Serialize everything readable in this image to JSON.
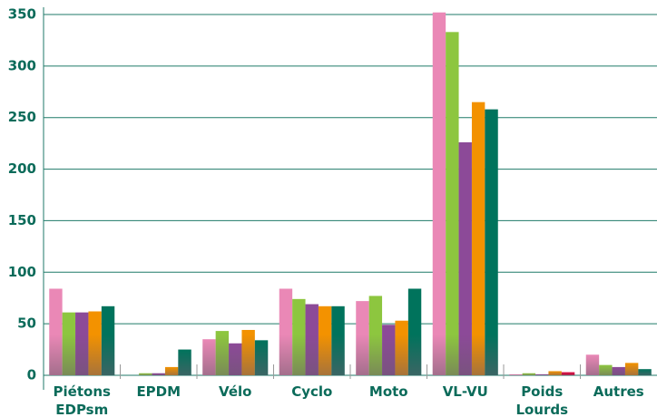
{
  "chart_data": {
    "type": "bar",
    "categories": [
      [
        "Piétons",
        "EDPsm"
      ],
      [
        "EPDM"
      ],
      [
        "Vélo"
      ],
      [
        "Cyclo"
      ],
      [
        "Moto"
      ],
      [
        "VL-VU"
      ],
      [
        "Poids",
        "Lourds"
      ],
      [
        "Autres"
      ]
    ],
    "series": [
      {
        "color": "#ea88b6",
        "values": [
          84,
          0,
          35,
          84,
          72,
          352,
          1,
          20
        ]
      },
      {
        "color": "#8dc63f",
        "values": [
          61,
          2,
          43,
          74,
          77,
          333,
          2,
          10
        ]
      },
      {
        "color": "#8c4a98",
        "values": [
          61,
          2,
          31,
          69,
          49,
          226,
          1,
          8
        ]
      },
      {
        "color": "#f39200",
        "values": [
          62,
          8,
          44,
          67,
          53,
          265,
          4,
          12
        ]
      },
      {
        "color": "#00735c",
        "point_colors": {
          "6": "#e4003a"
        },
        "values": [
          67,
          25,
          34,
          67,
          84,
          258,
          3,
          6
        ]
      }
    ],
    "ylim": [
      0,
      350
    ],
    "yticks": [
      0,
      50,
      100,
      150,
      200,
      250,
      300,
      350
    ],
    "grid": true
  }
}
